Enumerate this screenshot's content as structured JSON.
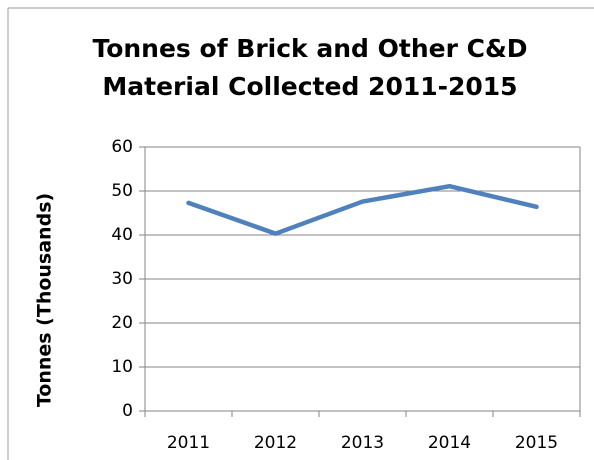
{
  "chart_data": {
    "type": "line",
    "title": "Tonnes of Brick and Other C&D Material Collected 2011-2015",
    "y_label": "Tonnes (Thousands)",
    "categories": [
      "2011",
      "2012",
      "2013",
      "2014",
      "2015"
    ],
    "series": [
      {
        "name": "Tonnes",
        "color": "#4f81bd",
        "values": [
          47.3,
          40.3,
          47.6,
          51.1,
          46.4
        ]
      }
    ],
    "ylim": [
      0,
      60
    ],
    "yticks": [
      0,
      10,
      20,
      30,
      40,
      50,
      60
    ],
    "grid": true
  }
}
